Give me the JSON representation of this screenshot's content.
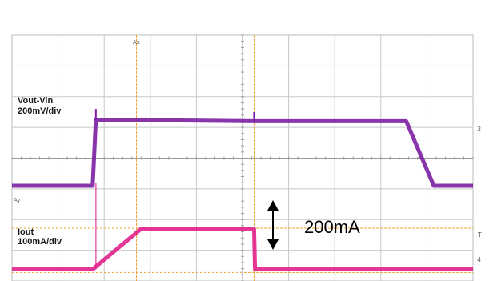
{
  "chart_data": {
    "type": "line",
    "title": "",
    "grid": true,
    "x": {
      "divisions": 10,
      "range": [
        0,
        10
      ]
    },
    "y": {
      "divisions": 8,
      "range": [
        0,
        8
      ]
    },
    "series": [
      {
        "name": "Vout-Vin",
        "label_line1": "Vout-Vin",
        "label_line2": "200mV/div",
        "color": "#7b1fa2",
        "points": [
          [
            0,
            3.1
          ],
          [
            1.75,
            3.1
          ],
          [
            1.82,
            5.25
          ],
          [
            5.25,
            5.2
          ],
          [
            8.55,
            5.2
          ],
          [
            9.15,
            3.1
          ],
          [
            10,
            3.1
          ]
        ]
      },
      {
        "name": "Iout",
        "label_line1": "Iout",
        "label_line2": "100mA/div",
        "color": "#e0208c",
        "points": [
          [
            0,
            0.38
          ],
          [
            1.75,
            0.38
          ],
          [
            2.8,
            1.7
          ],
          [
            5.25,
            1.7
          ],
          [
            5.27,
            0.38
          ],
          [
            10,
            0.38
          ]
        ]
      }
    ],
    "annotation": {
      "text": "200mA",
      "arrow": "vertical double-headed"
    },
    "cursors": {
      "vertical": [
        "Ax"
      ],
      "horizontal": [
        "Ay"
      ]
    },
    "channel_markers": [
      "3",
      "4",
      "T"
    ]
  }
}
